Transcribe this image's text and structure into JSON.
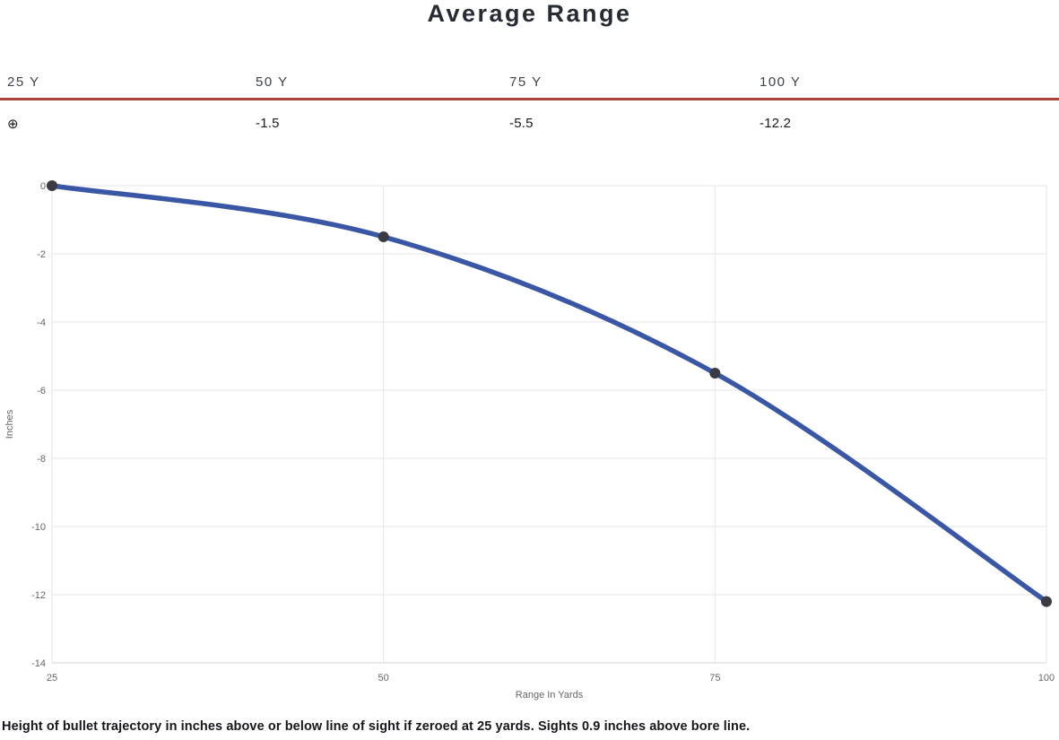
{
  "title": "Average Range",
  "range_table": {
    "accent_color": "#a6443c",
    "columns": [
      {
        "header": "25 Y",
        "value": "⊕",
        "value_icon": "zero-crosshair-icon"
      },
      {
        "header": "50 Y",
        "value": "-1.5"
      },
      {
        "header": "75 Y",
        "value": "-5.5"
      },
      {
        "header": "100 Y",
        "value": "-12.2"
      }
    ]
  },
  "chart_data": {
    "type": "line",
    "x": [
      25,
      50,
      75,
      100
    ],
    "series": [
      {
        "name": "Average Range",
        "values": [
          0,
          -1.5,
          -5.5,
          -12.2
        ]
      }
    ],
    "title": "",
    "xlabel": "Range In Yards",
    "ylabel": "Inches",
    "xlim": [
      25,
      100
    ],
    "ylim": [
      -14,
      0
    ],
    "x_ticks": [
      25,
      50,
      75,
      100
    ],
    "y_ticks": [
      0,
      -2,
      -4,
      -6,
      -8,
      -10,
      -12,
      -14
    ],
    "grid": true,
    "legend": false,
    "line_color": "#3a57a5",
    "marker_color": "#3b3b45",
    "grid_color": "#e6e6e6",
    "axis_line_color": "#d6d6d6",
    "tick_label_color": "#666666"
  },
  "caption": "Height of bullet trajectory in inches above or below line of sight if zeroed at 25 yards. Sights 0.9 inches above bore line."
}
